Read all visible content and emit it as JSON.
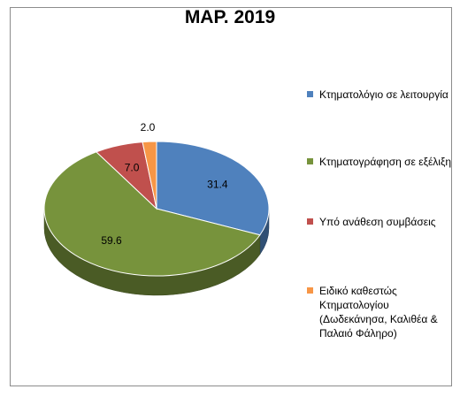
{
  "chart_data": {
    "type": "pie",
    "style": "3d",
    "title": "ΜΑΡ. 2019",
    "slices": [
      {
        "label": "Κτηματολόγιο σε λειτουργία",
        "value": 31.4,
        "value_label": "31.4",
        "color": "#4f81bd"
      },
      {
        "label": "Κτηματογράφηση σε εξέλιξη",
        "value": 59.6,
        "value_label": "59.6",
        "color": "#77933c"
      },
      {
        "label": "Υπό ανάθεση συμβάσεις",
        "value": 7.0,
        "value_label": "7.0",
        "color": "#c0504d"
      },
      {
        "label": "Ειδικό καθεστώς Κτηματολογίου (Δωδεκάνησα, Καλιθέα & Παλαιό Φάληρο)",
        "value": 2.0,
        "value_label": "2.0",
        "color": "#f79646"
      }
    ],
    "legend_position": "right"
  }
}
